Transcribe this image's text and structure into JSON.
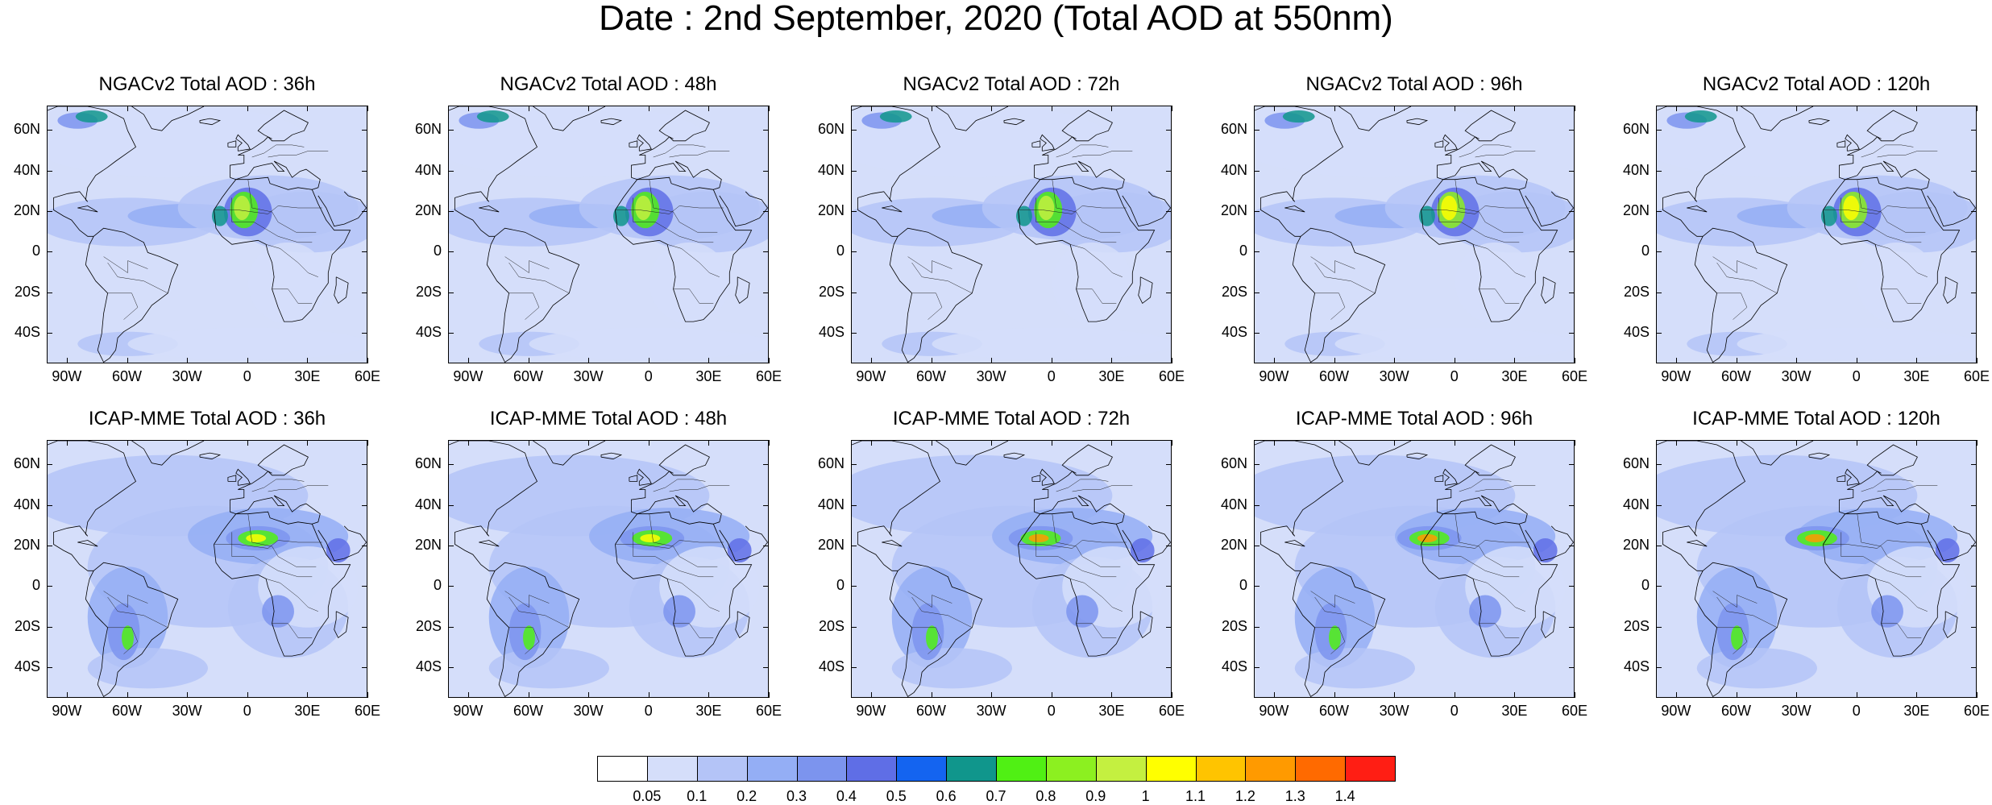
{
  "title": "Date : 2nd September, 2020 (Total AOD at 550nm)",
  "lat_labels": [
    "60N",
    "40N",
    "20N",
    "0",
    "20S",
    "40S"
  ],
  "lon_labels": [
    "90W",
    "60W",
    "30W",
    "0",
    "30E",
    "60E"
  ],
  "panels": [
    {
      "title": "NGACv2 Total AOD : 36h",
      "model": "NGACv2",
      "lead": "36h"
    },
    {
      "title": "NGACv2 Total AOD : 48h",
      "model": "NGACv2",
      "lead": "48h"
    },
    {
      "title": "NGACv2 Total AOD : 72h",
      "model": "NGACv2",
      "lead": "72h"
    },
    {
      "title": "NGACv2 Total AOD : 96h",
      "model": "NGACv2",
      "lead": "96h"
    },
    {
      "title": "NGACv2 Total AOD : 120h",
      "model": "NGACv2",
      "lead": "120h"
    },
    {
      "title": "ICAP-MME Total AOD : 36h",
      "model": "ICAP-MME",
      "lead": "36h"
    },
    {
      "title": "ICAP-MME Total AOD : 48h",
      "model": "ICAP-MME",
      "lead": "48h"
    },
    {
      "title": "ICAP-MME Total AOD : 72h",
      "model": "ICAP-MME",
      "lead": "72h"
    },
    {
      "title": "ICAP-MME Total AOD : 96h",
      "model": "ICAP-MME",
      "lead": "96h"
    },
    {
      "title": "ICAP-MME Total AOD : 120h",
      "model": "ICAP-MME",
      "lead": "120h"
    }
  ],
  "colorbar": {
    "labels": [
      "0.05",
      "0.1",
      "0.2",
      "0.3",
      "0.4",
      "0.5",
      "0.6",
      "0.7",
      "0.8",
      "0.9",
      "1",
      "1.1",
      "1.2",
      "1.3",
      "1.4"
    ],
    "colors": [
      "#ffffff",
      "#d5defa",
      "#b4c4f7",
      "#94aef5",
      "#7c94ee",
      "#5f6ee6",
      "#1464f0",
      "#10968c",
      "#50f014",
      "#8cf020",
      "#c4f040",
      "#ffff00",
      "#ffc400",
      "#ff9a00",
      "#ff6a00",
      "#ff1e14"
    ]
  }
}
